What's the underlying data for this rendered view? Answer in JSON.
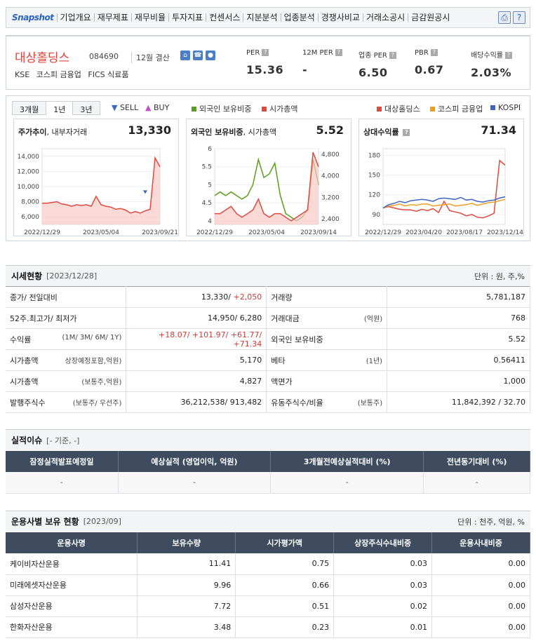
{
  "nav": {
    "snapshot": "Snapshot",
    "items": [
      "기업개요",
      "재무제표",
      "재무비율",
      "투자지표",
      "컨센서스",
      "지분분석",
      "업종분석",
      "경쟁사비교",
      "거래소공시",
      "금감원공시"
    ]
  },
  "header": {
    "name": "대상홀딩스",
    "code": "084690",
    "fiscal": "12월 결산",
    "market": "KSE",
    "market_sector": "코스피 금융업",
    "fics": "FICS 식료품",
    "metrics": [
      {
        "label": "PER",
        "value": "15.36"
      },
      {
        "label": "12M PER",
        "value": "-"
      },
      {
        "label": "업종 PER",
        "value": "6.50"
      },
      {
        "label": "PBR",
        "value": "0.67"
      },
      {
        "label": "배당수익률",
        "value": "2.03%"
      }
    ]
  },
  "chart_tabs": [
    "3개월",
    "1년",
    "3년"
  ],
  "chart_legend": {
    "sell": "SELL",
    "buy": "BUY",
    "foreign": "외국인 보유비중",
    "mcap": "시가총액",
    "l1": "대상홀딩스",
    "l2": "코스피 금융업",
    "l3": "KOSPI"
  },
  "colors": {
    "red": "#e04a3e",
    "green": "#5a9e1a",
    "orange": "#f0a020",
    "blue": "#3a66c4"
  },
  "chart_data": [
    {
      "type": "area",
      "title": "주가추이",
      "subtitle": ", 내부자거래",
      "headline": "13,330",
      "x_ticks": [
        "2022/12/29",
        "2023/05/04",
        "2023/09/21"
      ],
      "y_ticks": [
        "14,000",
        "12,000",
        "10,000",
        "8,000",
        "6,000"
      ],
      "ylim": [
        5000,
        15000
      ],
      "series": [
        {
          "values": [
            7800,
            7800,
            7900,
            8000,
            7700,
            7600,
            7400,
            7600,
            7500,
            7600,
            7400,
            8700,
            7600,
            7400,
            7300,
            7000,
            7100,
            6900,
            6500,
            6700,
            6500,
            6800,
            7000,
            13800,
            12600
          ]
        }
      ]
    },
    {
      "type": "line",
      "title": "외국인 보유비중",
      "subtitle": ", 시가총액",
      "headline": "5.52",
      "x_ticks": [
        "2022/12/29",
        "2023/05/04",
        "2023/09/14"
      ],
      "y_ticks": [
        "6",
        "5.5",
        "5",
        "4.5",
        "4"
      ],
      "y2_ticks": [
        "4,800",
        "4,000",
        "3,200",
        "2,400"
      ],
      "ylim": [
        3.9,
        6
      ],
      "series": [
        {
          "values": [
            4.7,
            4.8,
            4.7,
            4.8,
            4.7,
            4.6,
            4.7,
            5.0,
            5.7,
            5.2,
            5.3,
            5.6,
            4.7,
            4.2,
            4.1,
            4.0,
            4.1,
            4.3,
            5.7,
            5.0
          ]
        },
        {
          "values": [
            4.2,
            4.2,
            4.3,
            4.4,
            4.2,
            4.1,
            4.2,
            4.3,
            4.6,
            4.2,
            4.1,
            4.2,
            4.2,
            4.1,
            4.0,
            4.1,
            4.2,
            4.3,
            5.9,
            5.5
          ]
        }
      ]
    },
    {
      "type": "line",
      "title": "상대수익률",
      "headline": "71.34",
      "x_ticks": [
        "2022/12/29",
        "2023/04/20",
        "2023/08/17",
        "2023/12/14"
      ],
      "y_ticks": [
        "180",
        "150",
        "120",
        "90"
      ],
      "ylim": [
        75,
        190
      ],
      "series": [
        {
          "values": [
            100,
            102,
            100,
            98,
            97,
            97,
            95,
            98,
            96,
            99,
            93,
            110,
            96,
            94,
            92,
            88,
            90,
            86,
            85,
            88,
            92,
            172,
            165
          ]
        },
        {
          "values": [
            100,
            103,
            104,
            106,
            103,
            105,
            104,
            106,
            106,
            103,
            104,
            105,
            106,
            103,
            104,
            105,
            107,
            104,
            106,
            108,
            109,
            111,
            113
          ]
        },
        {
          "values": [
            100,
            105,
            107,
            110,
            108,
            111,
            112,
            113,
            112,
            110,
            114,
            115,
            114,
            113,
            116,
            112,
            113,
            110,
            109,
            111,
            112,
            115,
            117
          ]
        }
      ]
    }
  ],
  "quote": {
    "title": "시세현황",
    "date": "[2023/12/28]",
    "unit": "단위 : 원, 주,%",
    "rows": [
      {
        "l": "종가/ 전일대비",
        "ls": "",
        "v": "13,330/",
        "vr": " +2,050",
        "r": "거래량",
        "rs": "",
        "rv": "5,781,187"
      },
      {
        "l": "52주.최고가/ 최저가",
        "ls": "",
        "v": "14,950/ 6,280",
        "vr": "",
        "r": "거래대금",
        "rs": "(억원)",
        "rv": "768"
      },
      {
        "l": "수익률",
        "ls": "(1M/ 3M/ 6M/ 1Y)",
        "v": "",
        "vr": "+18.07/ +101.97/ +61.77/ +71.34",
        "r": "외국인 보유비중",
        "rs": "",
        "rv": "5.52"
      },
      {
        "l": "시가총액",
        "ls": "상장예정포함,억원)",
        "v": "5,170",
        "vr": "",
        "r": "베타",
        "rs": "(1년)",
        "rv": "0.56411"
      },
      {
        "l": "시가총액",
        "ls": "(보통주,억원)",
        "v": "4,827",
        "vr": "",
        "r": "액면가",
        "rs": "",
        "rv": "1,000"
      },
      {
        "l": "발행주식수",
        "ls": "(보통주/ 우선주)",
        "v": "36,212,538/ 913,482",
        "vr": "",
        "r": "유동주식수/비율",
        "rs": "(보통주)",
        "rv": "11,842,392 / 32.70"
      }
    ]
  },
  "perf": {
    "title": "실적이슈",
    "sub": "[- 기준, -]",
    "headers": [
      "잠정실적발표예정일",
      "예상실적 (영업이익, 억원)",
      "3개월전예상실적대비 (%)",
      "전년동기대비 (%)"
    ],
    "cells": [
      "-",
      "-",
      "-",
      "-"
    ]
  },
  "fund": {
    "title": "운용사별 보유 현황",
    "date": "[2023/09]",
    "unit": "단위 : 천주, 억원, %",
    "headers": [
      "운용사명",
      "보유수량",
      "시가평가액",
      "상장주식수내비중",
      "운용사내비중"
    ],
    "rows": [
      [
        "케이비자산운용",
        "11.41",
        "0.75",
        "0.03",
        "0.00"
      ],
      [
        "미래에셋자산운용",
        "9.96",
        "0.66",
        "0.03",
        "0.00"
      ],
      [
        "삼성자산운용",
        "7.72",
        "0.51",
        "0.02",
        "0.00"
      ],
      [
        "한화자산운용",
        "3.48",
        "0.23",
        "0.01",
        "0.00"
      ]
    ]
  }
}
